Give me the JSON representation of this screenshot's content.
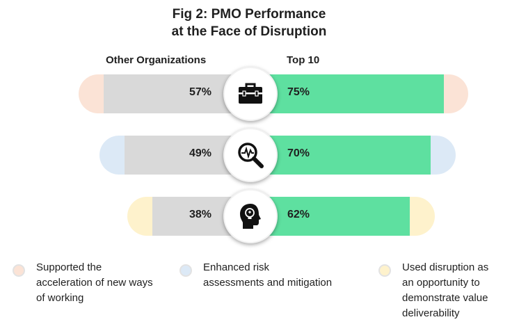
{
  "chart_data": {
    "type": "bar",
    "title_lines": [
      "Fig 2: PMO Performance",
      "at the Face of Disruption"
    ],
    "series": [
      {
        "name": "Other Organizations",
        "values": [
          57,
          49,
          38
        ],
        "labels": [
          "57%",
          "49%",
          "38%"
        ]
      },
      {
        "name": "Top 10",
        "values": [
          75,
          70,
          62
        ],
        "labels": [
          "75%",
          "70%",
          "62%"
        ]
      }
    ],
    "categories": [
      "Supported the acceleration of new ways of working",
      "Enhanced risk assessments and mitigation",
      "Used disruption as an opportunity to demonstrate value deliverability"
    ],
    "unit": "%"
  },
  "rows": [
    {
      "icon": "briefcase-icon",
      "accent": "#fbe3d6"
    },
    {
      "icon": "magnifier-pulse-icon",
      "accent": "#dce9f6"
    },
    {
      "icon": "head-lightbulb-icon",
      "accent": "#fef2cc"
    }
  ],
  "colors": {
    "other": "#d9d9d9",
    "top10": "#5ee0a0"
  },
  "legend": [
    {
      "lines": [
        "Supported the",
        "acceleration of new ways",
        "of working"
      ],
      "color": "#fbe3d6"
    },
    {
      "lines": [
        "Enhanced risk",
        "assessments and mitigation"
      ],
      "color": "#dce9f6"
    },
    {
      "lines": [
        "Used disruption as",
        "an opportunity to",
        "demonstrate value",
        "deliverability"
      ],
      "color": "#fef2cc"
    }
  ]
}
